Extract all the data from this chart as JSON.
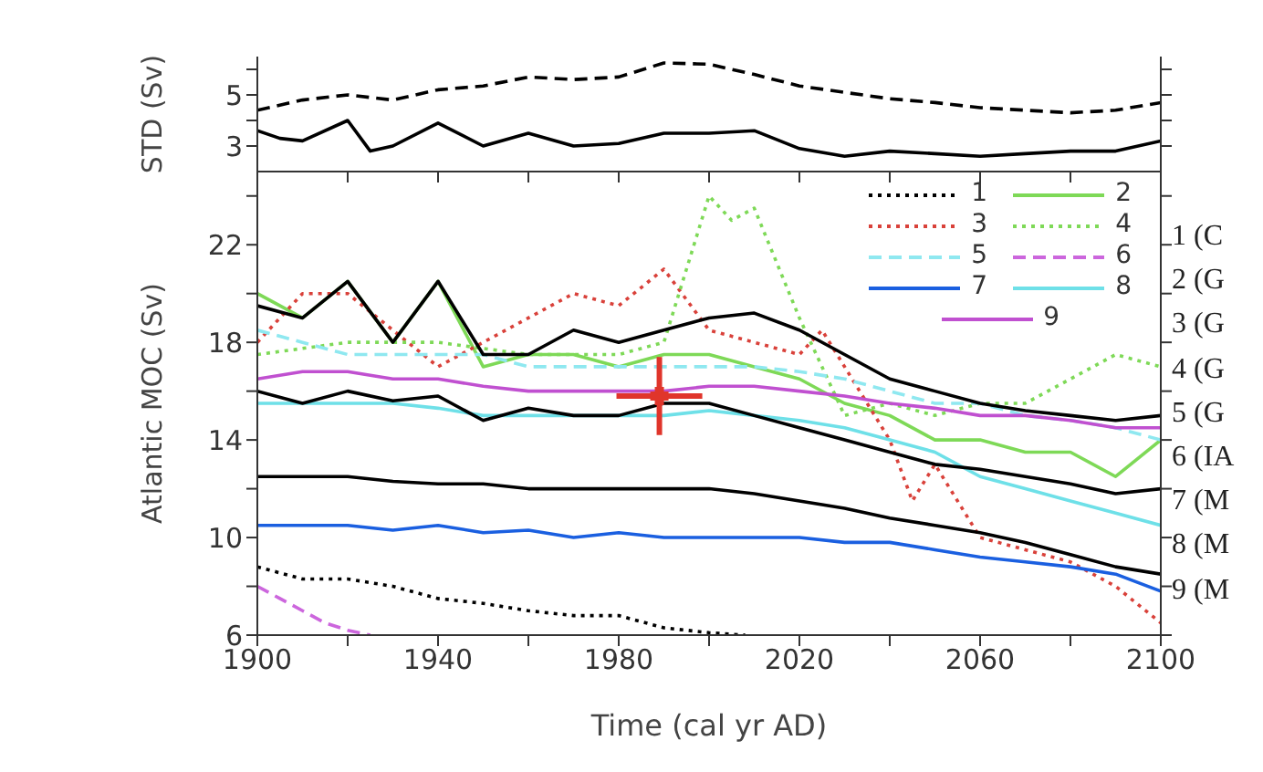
{
  "chart_data": [
    {
      "type": "line",
      "ylabel": "STD (Sv)",
      "xlim": [
        1900,
        2100
      ],
      "xticks": [
        {
          "value": 1900,
          "label": null
        },
        {
          "value": 1920,
          "label": null
        },
        {
          "value": 1940,
          "label": null
        },
        {
          "value": 1960,
          "label": null
        },
        {
          "value": 1980,
          "label": null
        },
        {
          "value": 2000,
          "label": null
        },
        {
          "value": 2020,
          "label": null
        },
        {
          "value": 2040,
          "label": null
        },
        {
          "value": 2060,
          "label": null
        },
        {
          "value": 2080,
          "label": null
        },
        {
          "value": 2100,
          "label": null
        }
      ],
      "ylim": [
        2,
        6.5
      ],
      "yticks": [
        3,
        {
          "value": 4,
          "label": null
        },
        5,
        {
          "value": 6,
          "label": null
        }
      ],
      "tick_labels": "y",
      "series": [
        {
          "color": "#000000",
          "line_style": "dashed",
          "x": [
            1900,
            1910,
            1920,
            1930,
            1940,
            1950,
            1960,
            1970,
            1980,
            1990,
            2000,
            2010,
            2020,
            2030,
            2040,
            2050,
            2060,
            2070,
            2080,
            2090,
            2100
          ],
          "values": [
            4.4,
            4.8,
            5,
            4.8,
            5.2,
            5.35,
            5.7,
            5.6,
            5.7,
            6.25,
            6.2,
            5.8,
            5.35,
            5.1,
            4.85,
            4.7,
            4.5,
            4.4,
            4.3,
            4.4,
            4.7
          ]
        },
        {
          "color": "#000000",
          "line_style": "solid",
          "x": [
            1900,
            1905,
            1910,
            1920,
            1925,
            1930,
            1940,
            1950,
            1960,
            1970,
            1980,
            1990,
            2000,
            2010,
            2020,
            2030,
            2040,
            2050,
            2060,
            2070,
            2080,
            2090,
            2100
          ],
          "values": [
            3.6,
            3.3,
            3.2,
            4.0,
            2.8,
            3.0,
            3.9,
            3.0,
            3.5,
            3.0,
            3.1,
            3.5,
            3.5,
            3.6,
            2.9,
            2.6,
            2.8,
            2.7,
            2.6,
            2.7,
            2.8,
            2.8,
            3.2
          ]
        }
      ]
    },
    {
      "type": "line",
      "ylabel": "Atlantic MOC (Sv)",
      "xlabel": "Time (cal yr AD)",
      "xlim": [
        1900,
        2100
      ],
      "xticks": [
        1900,
        {
          "value": 1920,
          "label": null
        },
        1940,
        {
          "value": 1960,
          "label": null
        },
        1980,
        {
          "value": 2000,
          "label": null
        },
        2020,
        {
          "value": 2040,
          "label": null
        },
        2060,
        {
          "value": 2080,
          "label": null
        },
        2100
      ],
      "ylim": [
        6,
        25
      ],
      "yticks": [
        6,
        {
          "value": 8,
          "label": null
        },
        10,
        {
          "value": 12,
          "label": null
        },
        14,
        {
          "value": 16,
          "label": null
        },
        18,
        {
          "value": 20,
          "label": null
        },
        22,
        {
          "value": 24,
          "label": null
        }
      ],
      "legend": "top right",
      "annotations": [
        "1 (C",
        "2 (G",
        "3 (G",
        "4 (G",
        "5 (G",
        "6 (IA",
        "7 (M",
        "8 (M",
        "9 (M"
      ],
      "x": [
        1900,
        1910,
        1920,
        1930,
        1940,
        1950,
        1960,
        1970,
        1980,
        1990,
        2000,
        2010,
        2020,
        2030,
        2040,
        2050,
        2060,
        2070,
        2080,
        2090,
        2100
      ],
      "series": [
        {
          "name": "1",
          "color": "#000000",
          "line_style": "dotted",
          "x": [
            1900,
            1910,
            1920,
            1930,
            1940,
            1950,
            1960,
            1970,
            1980,
            1990,
            2000,
            2008
          ],
          "values": [
            8.8,
            8.3,
            8.3,
            8,
            7.5,
            7.3,
            7,
            6.8,
            6.8,
            6.3,
            6.1,
            6
          ]
        },
        {
          "name": "2",
          "color": "#7ed957",
          "line_style": "solid",
          "values": [
            20,
            19,
            20.5,
            18,
            20.5,
            17,
            17.5,
            17.5,
            17,
            17.5,
            17.5,
            17,
            16.5,
            15.5,
            15,
            14,
            14,
            13.5,
            13.5,
            12.5,
            14
          ]
        },
        {
          "name": "3",
          "color": "#d9413a",
          "line_style": "dotted",
          "x": [
            1900,
            1910,
            1920,
            1930,
            1940,
            1950,
            1960,
            1970,
            1980,
            1990,
            2000,
            2010,
            2020,
            2025,
            2030,
            2040,
            2045,
            2050,
            2060,
            2070,
            2080,
            2090,
            2100
          ],
          "values": [
            18,
            20,
            20,
            18.5,
            17,
            18,
            19,
            20,
            19.5,
            21,
            18.5,
            18,
            17.5,
            18.5,
            17,
            14,
            11.5,
            13,
            10,
            9.5,
            9,
            8,
            6.5
          ]
        },
        {
          "name": "4",
          "color": "#7ed957",
          "line_style": "dotted",
          "x": [
            1900,
            1920,
            1940,
            1960,
            1980,
            1990,
            1995,
            2000,
            2005,
            2010,
            2020,
            2030,
            2040,
            2050,
            2060,
            2070,
            2080,
            2090,
            2100
          ],
          "values": [
            17.5,
            18,
            18,
            17.5,
            17.5,
            18,
            21,
            24,
            23,
            23.5,
            19,
            15,
            15.5,
            15,
            15.5,
            15.5,
            16.5,
            17.5,
            17
          ]
        },
        {
          "name": "5",
          "color": "#8fe8f0",
          "line_style": "dashed",
          "values": [
            18.5,
            18,
            17.5,
            17.5,
            17.5,
            17.5,
            17,
            17,
            17,
            17,
            17,
            17,
            16.8,
            16.5,
            16,
            15.5,
            15.5,
            15,
            14.8,
            14.5,
            14
          ]
        },
        {
          "name": "6",
          "color": "#cc66dd",
          "line_style": "dashed",
          "x": [
            1900,
            1905,
            1910,
            1915,
            1920,
            1925
          ],
          "values": [
            8,
            7.5,
            7,
            6.5,
            6.2,
            6
          ]
        },
        {
          "name": "7",
          "color": "#1a5fe0",
          "line_style": "solid",
          "values": [
            10.5,
            10.5,
            10.5,
            10.3,
            10.5,
            10.2,
            10.3,
            10,
            10.2,
            10,
            10,
            10,
            10,
            9.8,
            9.8,
            9.5,
            9.2,
            9,
            8.8,
            8.5,
            7.8
          ]
        },
        {
          "name": "8",
          "color": "#6ee0e8",
          "line_style": "solid",
          "values": [
            15.5,
            15.5,
            15.5,
            15.5,
            15.3,
            15,
            15,
            15,
            15,
            15,
            15.2,
            15,
            14.8,
            14.5,
            14,
            13.5,
            12.5,
            12,
            11.5,
            11,
            10.5
          ]
        },
        {
          "name": "9",
          "color": "#c050d0",
          "line_style": "solid",
          "values": [
            16.5,
            16.8,
            16.8,
            16.5,
            16.5,
            16.2,
            16,
            16,
            16,
            16,
            16.2,
            16.2,
            16,
            15.8,
            15.5,
            15.3,
            15,
            15,
            14.8,
            14.5,
            14.5
          ]
        },
        {
          "color": "#000000",
          "line_style": "solid",
          "values": [
            19.5,
            19,
            20.5,
            18,
            20.5,
            17.5,
            17.5,
            18.5,
            18,
            18.5,
            19,
            19.2,
            18.5,
            17.5,
            16.5,
            16,
            15.5,
            15.2,
            15,
            14.8,
            15
          ]
        },
        {
          "color": "#000000",
          "line_style": "solid",
          "values": [
            16,
            15.5,
            16,
            15.6,
            15.8,
            14.8,
            15.3,
            15,
            15,
            15.5,
            15.5,
            15,
            14.5,
            14,
            13.5,
            13,
            12.8,
            12.5,
            12.2,
            11.8,
            12
          ]
        },
        {
          "color": "#000000",
          "line_style": "solid",
          "values": [
            12.5,
            12.5,
            12.5,
            12.3,
            12.2,
            12.2,
            12,
            12,
            12,
            12,
            12,
            11.8,
            11.5,
            11.2,
            10.8,
            10.5,
            10.2,
            9.8,
            9.3,
            8.8,
            8.5
          ]
        },
        {
          "type": "scatter",
          "color": "#e0352b",
          "marker": "cross",
          "x": [
            1989
          ],
          "values": [
            15.8
          ],
          "xerrors": [
            9.5
          ],
          "errors": [
            1.6
          ]
        }
      ]
    }
  ]
}
